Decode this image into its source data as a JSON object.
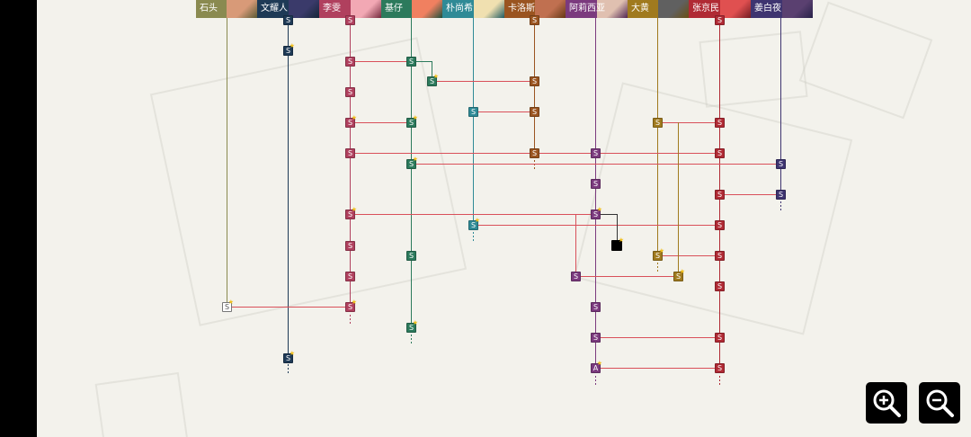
{
  "characters": [
    {
      "name": "石头",
      "color": "#8a8a50"
    },
    {
      "name": "文耀人",
      "color": "#1e3a56"
    },
    {
      "name": "李雯",
      "color": "#b0405e"
    },
    {
      "name": "基仔",
      "color": "#2c7a5c"
    },
    {
      "name": "朴尚希",
      "color": "#2f8a96"
    },
    {
      "name": "卡洛斯",
      "color": "#9a5420"
    },
    {
      "name": "阿莉西亚",
      "color": "#7b3a7e"
    },
    {
      "name": "大黄",
      "color": "#a07a1e"
    },
    {
      "name": "张京民",
      "color": "#b02a34"
    },
    {
      "name": "姜白夜",
      "color": "#3e3470"
    }
  ],
  "node_label_s": "S",
  "node_label_a": "A",
  "controls": {
    "zoom_in": "zoom-in-icon",
    "zoom_out": "zoom-out-icon"
  }
}
